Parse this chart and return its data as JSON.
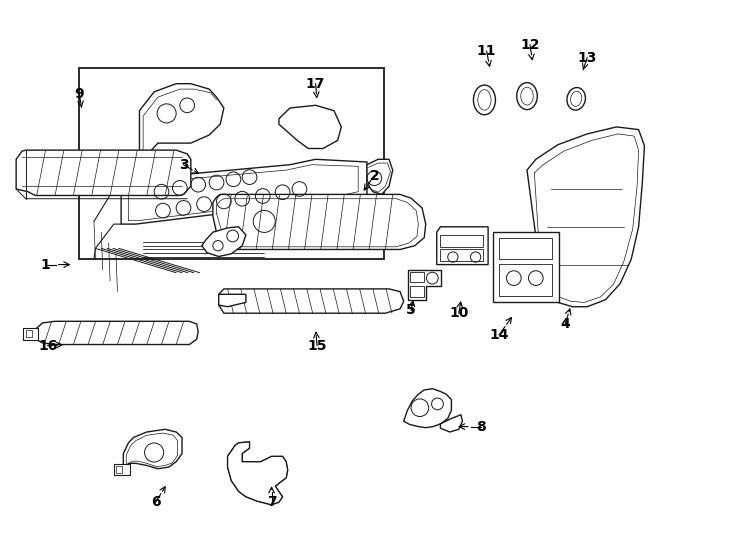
{
  "background_color": "#ffffff",
  "line_color": "#1a1a1a",
  "fig_width": 7.34,
  "fig_height": 5.4,
  "dpi": 100,
  "label_positions": {
    "1": [
      0.062,
      0.49,
      0.1,
      0.49
    ],
    "2": [
      0.51,
      0.325,
      0.493,
      0.358
    ],
    "3": [
      0.25,
      0.305,
      0.275,
      0.325
    ],
    "4": [
      0.77,
      0.6,
      0.778,
      0.565
    ],
    "5": [
      0.56,
      0.575,
      0.563,
      0.555
    ],
    "6": [
      0.212,
      0.93,
      0.228,
      0.895
    ],
    "7": [
      0.37,
      0.93,
      0.37,
      0.895
    ],
    "8": [
      0.655,
      0.79,
      0.62,
      0.79
    ],
    "9": [
      0.108,
      0.175,
      0.112,
      0.205
    ],
    "10": [
      0.625,
      0.58,
      0.628,
      0.557
    ],
    "11": [
      0.663,
      0.095,
      0.668,
      0.13
    ],
    "12": [
      0.722,
      0.083,
      0.726,
      0.118
    ],
    "13": [
      0.8,
      0.107,
      0.793,
      0.135
    ],
    "14": [
      0.68,
      0.62,
      0.7,
      0.582
    ],
    "15": [
      0.432,
      0.64,
      0.43,
      0.608
    ],
    "16": [
      0.065,
      0.64,
      0.09,
      0.638
    ],
    "17": [
      0.43,
      0.155,
      0.432,
      0.188
    ]
  }
}
